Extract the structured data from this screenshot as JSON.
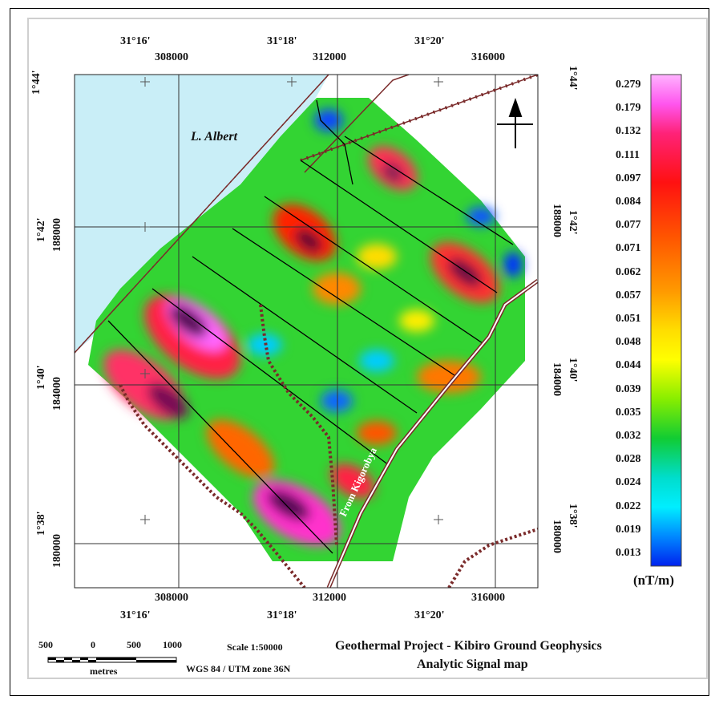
{
  "map": {
    "lake_label": "L. Albert",
    "road_label": "From Kigorobya",
    "top_lon_labels": [
      "31°16'",
      "31°18'",
      "31°20'"
    ],
    "top_easting_labels": [
      "308000",
      "312000",
      "316000"
    ],
    "bottom_easting_labels": [
      "308000",
      "312000",
      "316000"
    ],
    "bottom_lon_labels": [
      "31°16'",
      "31°18'",
      "31°20'"
    ],
    "left_lat_labels": [
      "1°44'",
      "1°42'",
      "1°40'",
      "1°38'"
    ],
    "left_northing_labels": [
      "188000",
      "184000",
      "180000"
    ],
    "right_lat_labels": [
      "1°44'",
      "1°42'",
      "1°40'",
      "1°38'"
    ],
    "right_northing_labels": [
      "188000",
      "184000",
      "180000"
    ]
  },
  "legend": {
    "values": [
      "0.279",
      "0.179",
      "0.132",
      "0.111",
      "0.097",
      "0.084",
      "0.077",
      "0.071",
      "0.062",
      "0.057",
      "0.051",
      "0.048",
      "0.044",
      "0.039",
      "0.035",
      "0.032",
      "0.028",
      "0.024",
      "0.022",
      "0.019",
      "0.013"
    ],
    "unit": "(nT/m)",
    "colors": [
      "#ff66ff",
      "#ff33cc",
      "#ff2255",
      "#ff1111",
      "#ee1111",
      "#ff3300",
      "#ff5500",
      "#ff7700",
      "#ff9900",
      "#ffbb00",
      "#ffdd00",
      "#ffff00",
      "#ccff00",
      "#88ee00",
      "#33dd00",
      "#00cc44",
      "#00ddaa",
      "#00eeee",
      "#00bbff",
      "#0077ff",
      "#0022ff"
    ]
  },
  "scalebar": {
    "labels": [
      "500",
      "0",
      "500",
      "1000"
    ],
    "unit": "metres",
    "scale": "Scale 1:50000",
    "projection": "WGS 84 / UTM zone 36N"
  },
  "title": {
    "line1": "Geothermal Project - Kibiro Ground Geophysics",
    "line2": "Analytic Signal map"
  }
}
